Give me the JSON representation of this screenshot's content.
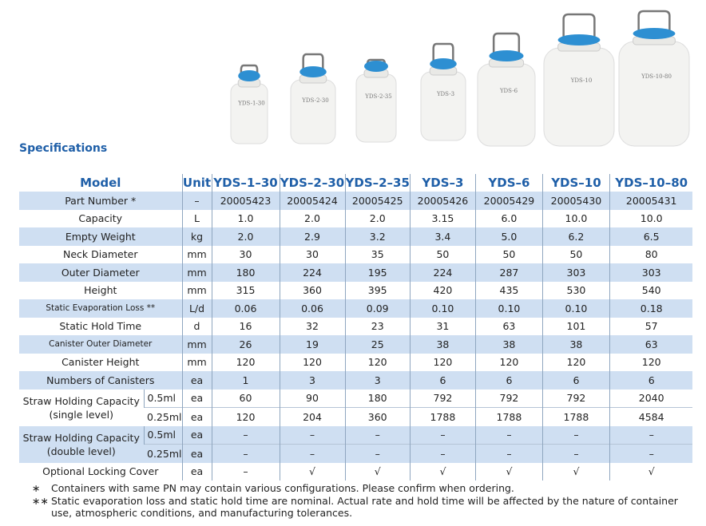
{
  "images": [
    "YDS-1-30",
    "YDS-2-30",
    "YDS-2-35",
    "YDS-3",
    "YDS-6",
    "YDS-10",
    "YDS-10-80"
  ],
  "heading": "Specifications",
  "table": {
    "header": {
      "model": "Model",
      "unit": "Unit",
      "models": [
        "YDS–1–30",
        "YDS–2–30",
        "YDS–2–35",
        "YDS–3",
        "YDS–6",
        "YDS–10",
        "YDS–10–80"
      ]
    },
    "rows": [
      {
        "label": "Part Number *",
        "unit": "–",
        "values": [
          "20005423",
          "20005424",
          "20005425",
          "20005426",
          "20005429",
          "20005430",
          "20005431"
        ]
      },
      {
        "label": "Capacity",
        "unit": "L",
        "values": [
          "1.0",
          "2.0",
          "2.0",
          "3.15",
          "6.0",
          "10.0",
          "10.0"
        ]
      },
      {
        "label": "Empty Weight",
        "unit": "kg",
        "values": [
          "2.0",
          "2.9",
          "3.2",
          "3.4",
          "5.0",
          "6.2",
          "6.5"
        ]
      },
      {
        "label": "Neck Diameter",
        "unit": "mm",
        "values": [
          "30",
          "30",
          "35",
          "50",
          "50",
          "50",
          "80"
        ]
      },
      {
        "label": "Outer Diameter",
        "unit": "mm",
        "values": [
          "180",
          "224",
          "195",
          "224",
          "287",
          "303",
          "303"
        ]
      },
      {
        "label": "Height",
        "unit": "mm",
        "values": [
          "315",
          "360",
          "395",
          "420",
          "435",
          "530",
          "540"
        ]
      },
      {
        "label": "Static Evaporation Loss **",
        "unit": "L/d",
        "values": [
          "0.06",
          "0.06",
          "0.09",
          "0.10",
          "0.10",
          "0.10",
          "0.18"
        ]
      },
      {
        "label": "Static Hold Time",
        "unit": "d",
        "values": [
          "16",
          "32",
          "23",
          "31",
          "63",
          "101",
          "57"
        ]
      },
      {
        "label": "Canister Outer Diameter",
        "unit": "mm",
        "values": [
          "26",
          "19",
          "25",
          "38",
          "38",
          "38",
          "63"
        ]
      },
      {
        "label": "Canister Height",
        "unit": "mm",
        "values": [
          "120",
          "120",
          "120",
          "120",
          "120",
          "120",
          "120"
        ]
      },
      {
        "label": "Numbers of Canisters",
        "unit": "ea",
        "values": [
          "1",
          "3",
          "3",
          "6",
          "6",
          "6",
          "6"
        ]
      },
      {
        "label": "Straw Holding Capacity",
        "label2": "(single level)",
        "sub": [
          {
            "size": "0.5ml",
            "unit": "ea",
            "values": [
              "60",
              "90",
              "180",
              "792",
              "792",
              "792",
              "2040"
            ]
          },
          {
            "size": "0.25ml",
            "unit": "ea",
            "values": [
              "120",
              "204",
              "360",
              "1788",
              "1788",
              "1788",
              "4584"
            ]
          }
        ]
      },
      {
        "label": "Straw Holding Capacity",
        "label2": "(double level)",
        "sub": [
          {
            "size": "0.5ml",
            "unit": "ea",
            "values": [
              "–",
              "–",
              "–",
              "–",
              "–",
              "–",
              "–"
            ]
          },
          {
            "size": "0.25ml",
            "unit": "ea",
            "values": [
              "–",
              "–",
              "–",
              "–",
              "–",
              "–",
              "–"
            ]
          }
        ]
      },
      {
        "label": "Optional Locking Cover",
        "unit": "ea",
        "values": [
          "–",
          "√",
          "√",
          "√",
          "√",
          "√",
          "√"
        ]
      }
    ]
  },
  "notes": [
    {
      "mark": "∗",
      "text": "Containers with same PN may contain various configurations. Please confirm when ordering."
    },
    {
      "mark": "∗∗",
      "text": "Static evaporation loss and static hold time are nominal. Actual rate and hold time will be affected by the nature of container use, atmospheric conditions, and manufacturing tolerances."
    }
  ]
}
